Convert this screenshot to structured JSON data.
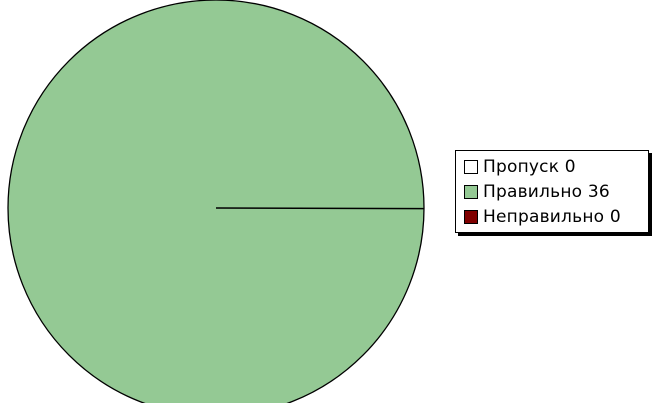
{
  "chart_data": {
    "type": "pie",
    "slices": [
      {
        "label": "Пропуск",
        "value": 0,
        "color": "#ffffff"
      },
      {
        "label": "Правильно",
        "value": 36,
        "color": "#94c994"
      },
      {
        "label": "Неправильно",
        "value": 0,
        "color": "#800000"
      }
    ],
    "legend": {
      "position": "right",
      "items": [
        {
          "text": "Пропуск 0",
          "color": "#ffffff"
        },
        {
          "text": "Правильно 36",
          "color": "#94c994"
        },
        {
          "text": "Неправильно 0",
          "color": "#800000"
        }
      ]
    }
  }
}
